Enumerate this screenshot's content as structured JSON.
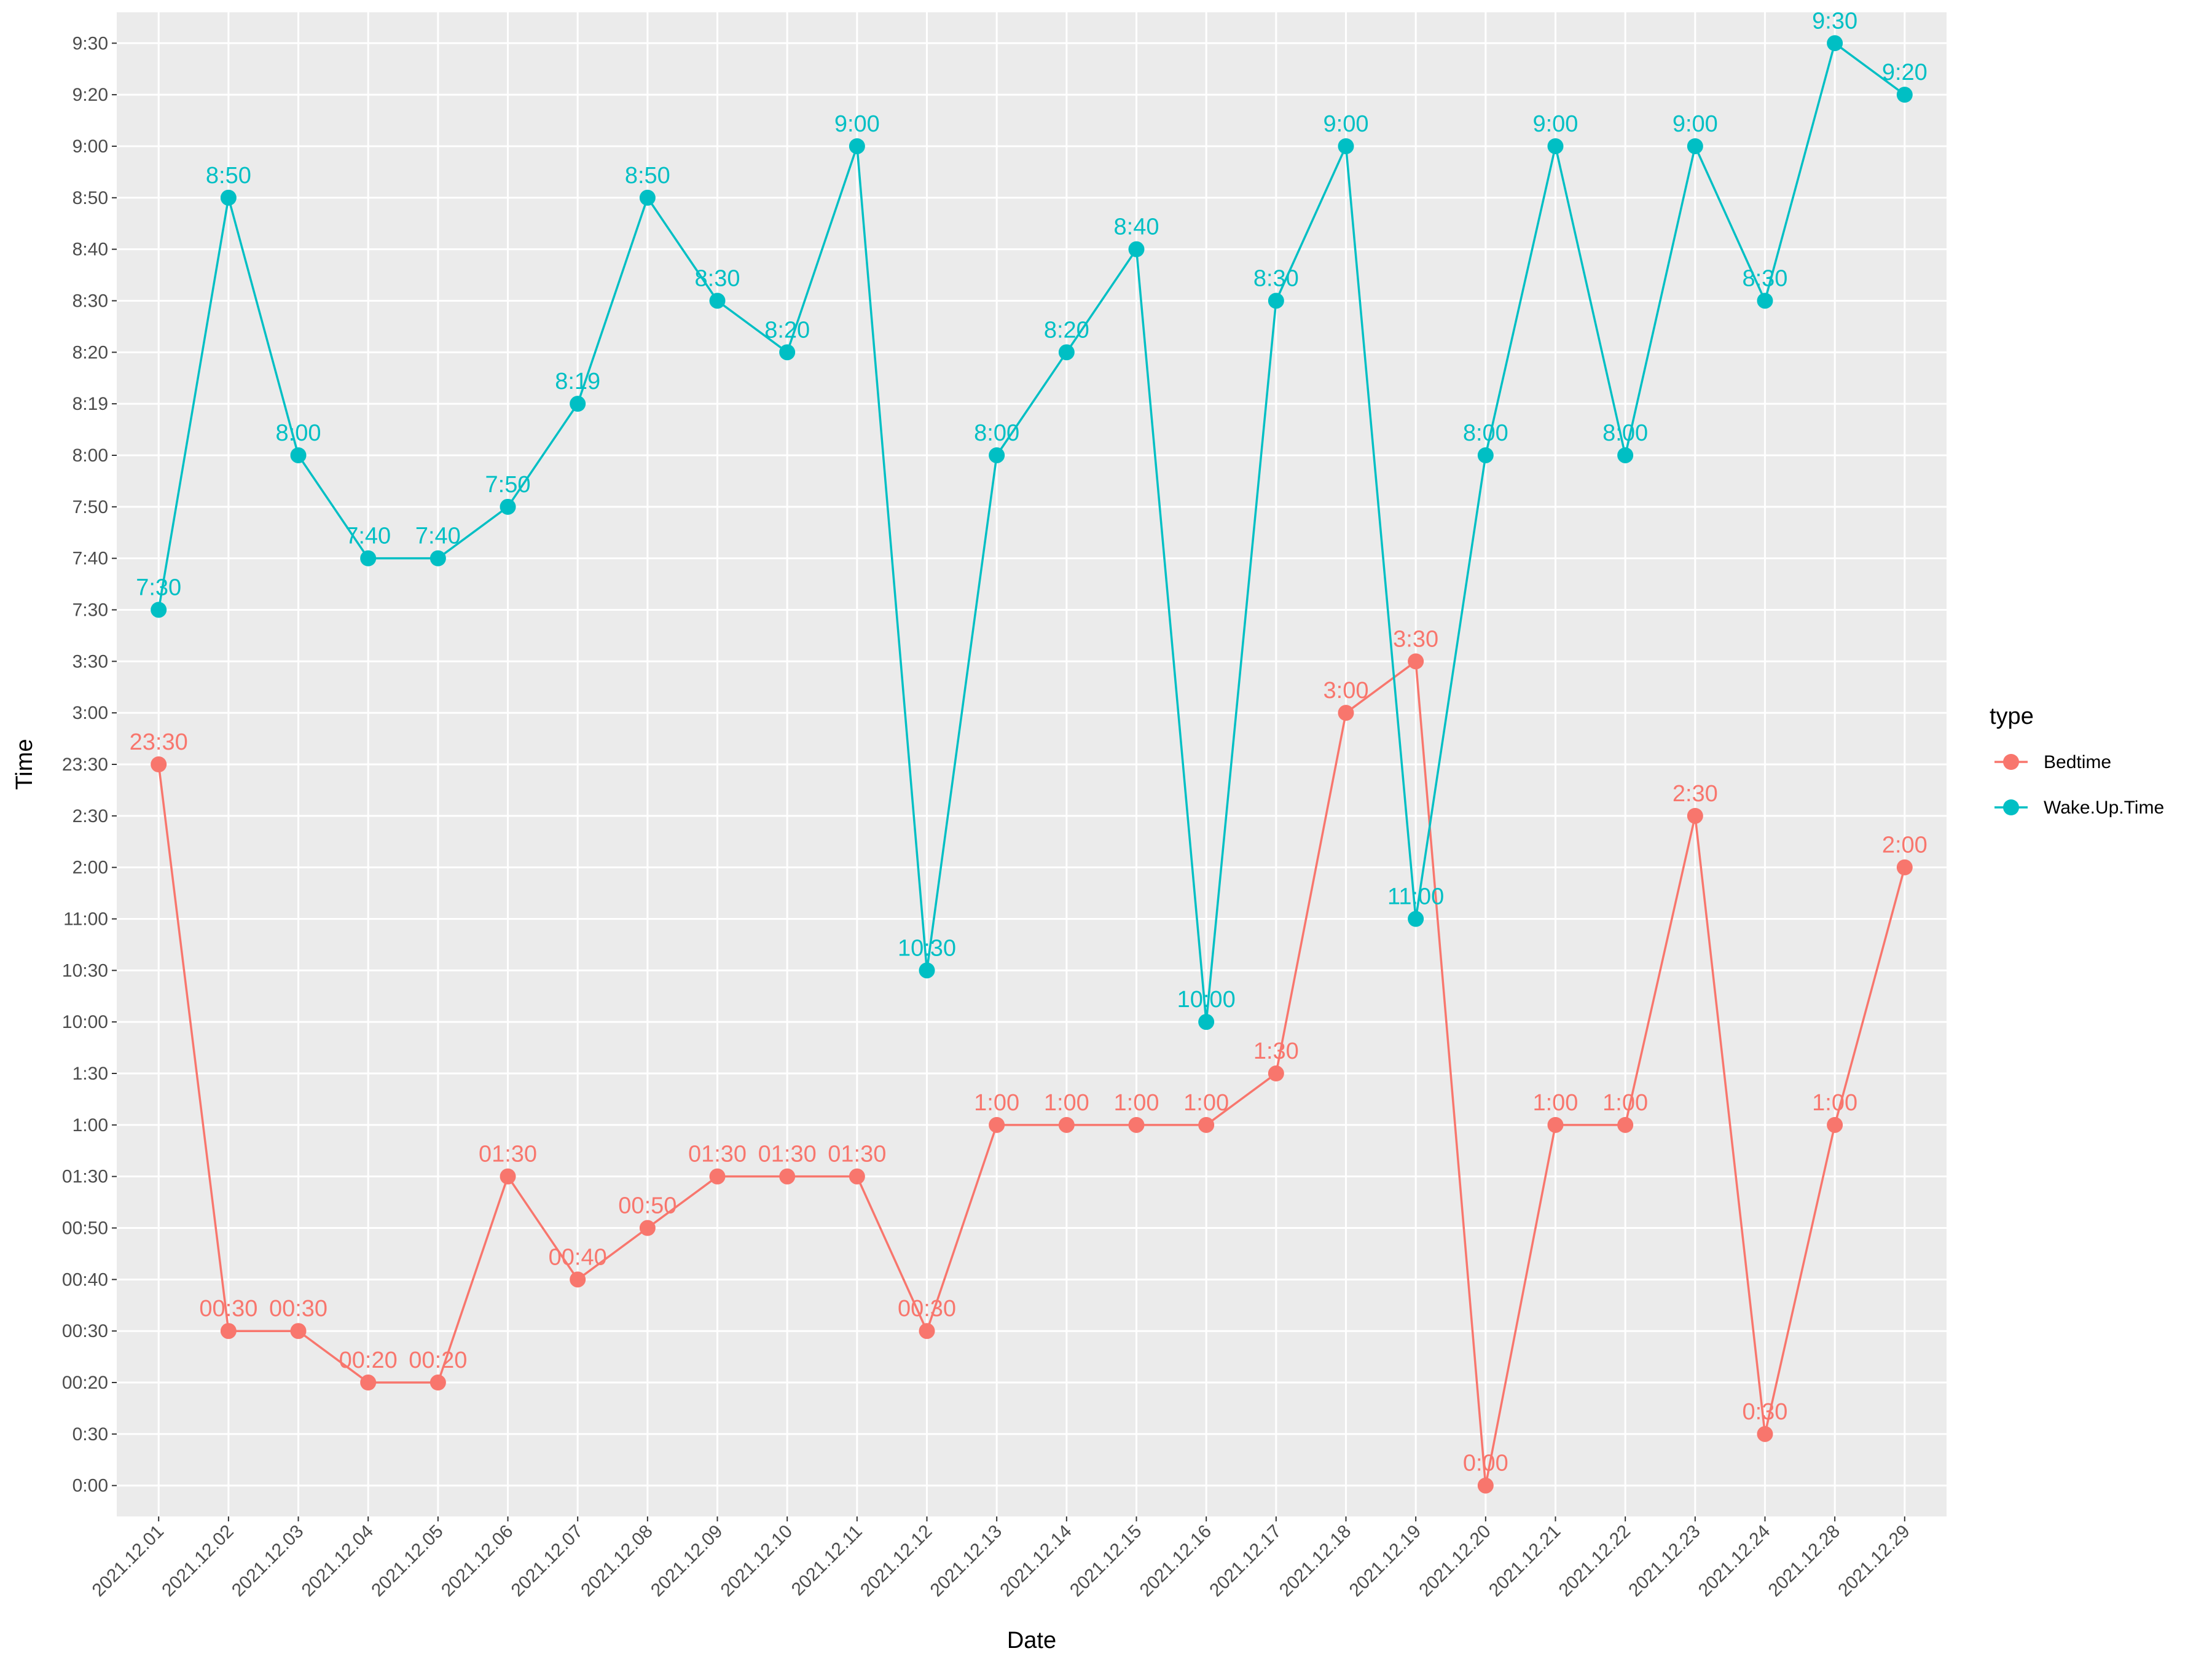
{
  "chart_data": {
    "type": "line",
    "title": "",
    "xlabel": "Date",
    "ylabel": "Time",
    "grid": true,
    "legend_position": "right",
    "legend_title": "type",
    "categories": [
      "2021.12.01",
      "2021.12.02",
      "2021.12.03",
      "2021.12.04",
      "2021.12.05",
      "2021.12.06",
      "2021.12.07",
      "2021.12.08",
      "2021.12.09",
      "2021.12.10",
      "2021.12.11",
      "2021.12.12",
      "2021.12.13",
      "2021.12.14",
      "2021.12.15",
      "2021.12.16",
      "2021.12.17",
      "2021.12.18",
      "2021.12.19",
      "2021.12.20",
      "2021.12.21",
      "2021.12.22",
      "2021.12.23",
      "2021.12.24",
      "2021.12.28",
      "2021.12.29"
    ],
    "y_levels": [
      "0:00",
      "0:30",
      "00:20",
      "00:30",
      "00:40",
      "00:50",
      "01:30",
      "1:00",
      "1:30",
      "10:00",
      "10:30",
      "11:00",
      "2:00",
      "2:30",
      "23:30",
      "3:00",
      "3:30",
      "7:30",
      "7:40",
      "7:50",
      "8:00",
      "8:19",
      "8:20",
      "8:30",
      "8:40",
      "8:50",
      "9:00",
      "9:20",
      "9:30"
    ],
    "series": [
      {
        "name": "Bedtime",
        "color": "#F8766D",
        "values": [
          "23:30",
          "00:30",
          "00:30",
          "00:20",
          "00:20",
          "01:30",
          "00:40",
          "00:50",
          "01:30",
          "01:30",
          "01:30",
          "00:30",
          "1:00",
          "1:00",
          "1:00",
          "1:00",
          "1:30",
          "3:00",
          "3:30",
          "0:00",
          "1:00",
          "1:00",
          "2:30",
          "0:30",
          "1:00",
          "2:00"
        ]
      },
      {
        "name": "Wake.Up.Time",
        "color": "#00BFC4",
        "values": [
          "7:30",
          "8:50",
          "8:00",
          "7:40",
          "7:40",
          "7:50",
          "8:19",
          "8:50",
          "8:30",
          "8:20",
          "9:00",
          "10:30",
          "8:00",
          "8:20",
          "8:40",
          "10:00",
          "8:30",
          "9:00",
          "11:00",
          "8:00",
          "9:00",
          "8:00",
          "9:00",
          "8:30",
          "9:30",
          "9:20"
        ]
      }
    ],
    "colors": {
      "panel": "#EBEBEB",
      "grid": "#FFFFFF",
      "tick_text": "#4D4D4D"
    }
  }
}
